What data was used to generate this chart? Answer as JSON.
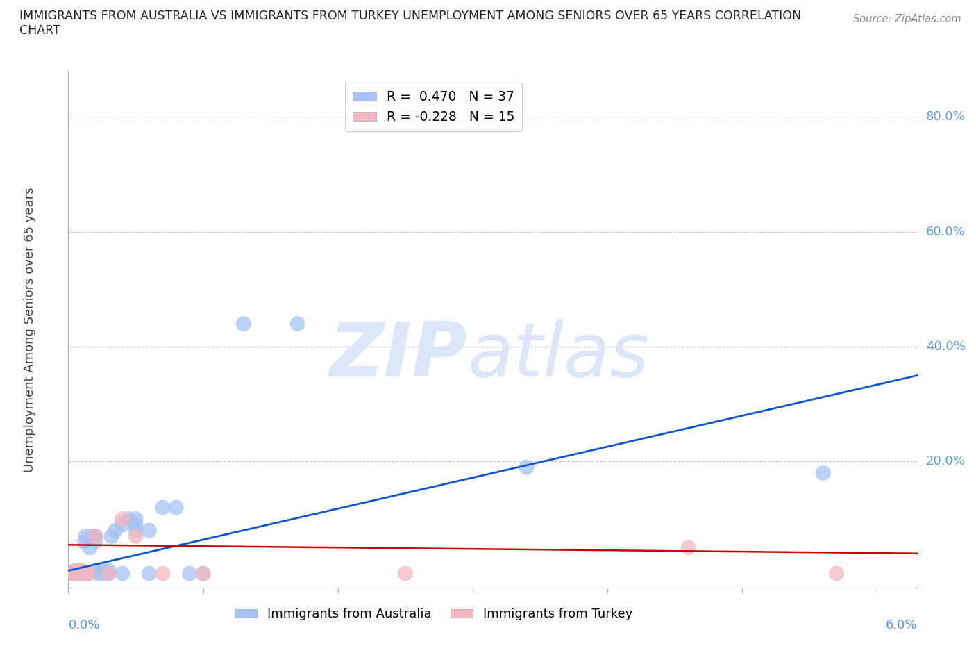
{
  "title_line1": "IMMIGRANTS FROM AUSTRALIA VS IMMIGRANTS FROM TURKEY UNEMPLOYMENT AMONG SENIORS OVER 65 YEARS CORRELATION",
  "title_line2": "CHART",
  "source": "Source: ZipAtlas.com",
  "ylabel": "Unemployment Among Seniors over 65 years",
  "australia_R": 0.47,
  "australia_N": 37,
  "turkey_R": -0.228,
  "turkey_N": 15,
  "australia_color": "#a4c2f4",
  "turkey_color": "#f4b8c1",
  "australia_line_color": "#1155cc",
  "turkey_line_color": "#cc0000",
  "background_color": "#ffffff",
  "watermark_color": "#dce6f8",
  "xlim": [
    0.0,
    0.063
  ],
  "ylim": [
    -0.02,
    0.88
  ],
  "ytick_positions": [
    0.0,
    0.2,
    0.4,
    0.6,
    0.8
  ],
  "ytick_labels": [
    "",
    "20.0%",
    "40.0%",
    "60.0%",
    "80.0%"
  ],
  "xtick_positions": [
    0.0,
    0.01,
    0.02,
    0.03,
    0.04,
    0.05,
    0.06
  ],
  "australia_x": [
    0.0003,
    0.0005,
    0.0007,
    0.0008,
    0.001,
    0.001,
    0.0012,
    0.0013,
    0.0015,
    0.0016,
    0.0018,
    0.002,
    0.002,
    0.002,
    0.0022,
    0.0025,
    0.0027,
    0.003,
    0.003,
    0.0032,
    0.0035,
    0.004,
    0.004,
    0.0045,
    0.005,
    0.005,
    0.005,
    0.006,
    0.006,
    0.007,
    0.008,
    0.009,
    0.01,
    0.013,
    0.017,
    0.034,
    0.056
  ],
  "australia_y": [
    0.005,
    0.01,
    0.005,
    0.01,
    0.005,
    0.008,
    0.06,
    0.07,
    0.005,
    0.05,
    0.07,
    0.01,
    0.06,
    0.07,
    0.005,
    0.01,
    0.005,
    0.005,
    0.01,
    0.07,
    0.08,
    0.09,
    0.005,
    0.1,
    0.08,
    0.09,
    0.1,
    0.005,
    0.08,
    0.12,
    0.12,
    0.005,
    0.005,
    0.44,
    0.44,
    0.19,
    0.18
  ],
  "turkey_x": [
    0.0003,
    0.0005,
    0.0008,
    0.001,
    0.0012,
    0.0015,
    0.002,
    0.003,
    0.004,
    0.005,
    0.007,
    0.01,
    0.025,
    0.046,
    0.057
  ],
  "turkey_y": [
    0.005,
    0.01,
    0.005,
    0.01,
    0.005,
    0.005,
    0.07,
    0.005,
    0.1,
    0.07,
    0.005,
    0.005,
    0.005,
    0.05,
    0.005
  ],
  "aus_line_x0": 0.0,
  "aus_line_y0": 0.01,
  "aus_line_x1": 0.063,
  "aus_line_y1": 0.35,
  "tur_line_x0": 0.0,
  "tur_line_y0": 0.055,
  "tur_line_x1": 0.063,
  "tur_line_y1": 0.04
}
